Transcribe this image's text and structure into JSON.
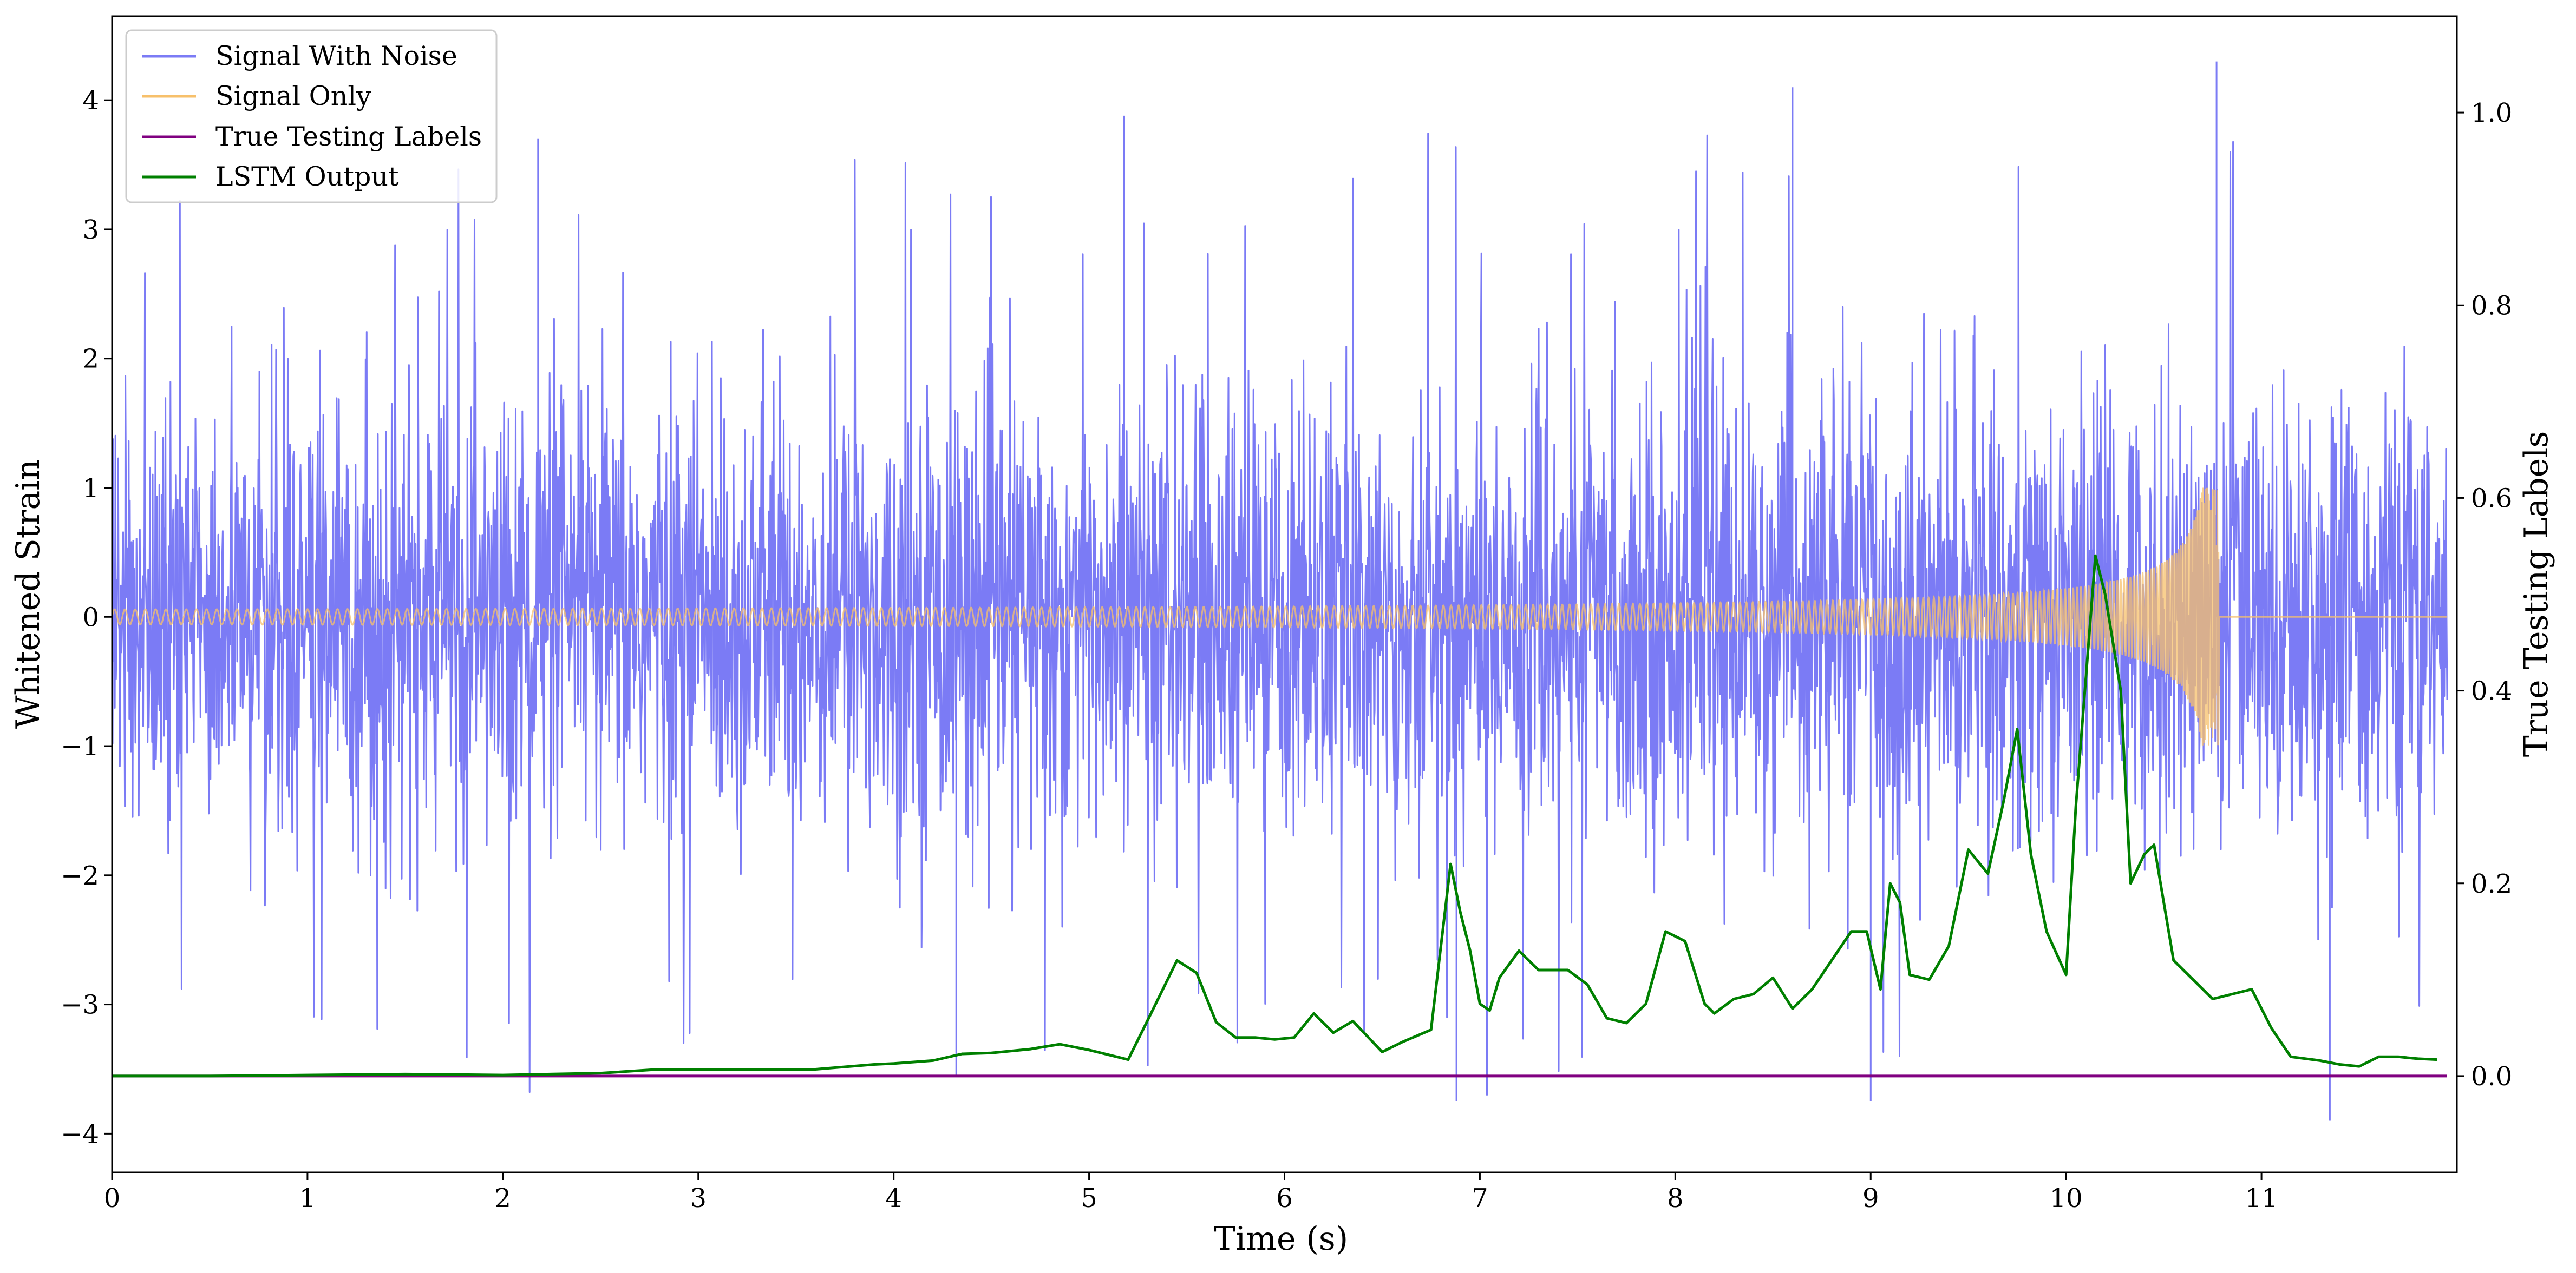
{
  "chart_data": {
    "type": "line",
    "xlabel": "Time (s)",
    "ylabel": "Whitened Strain",
    "ylabel_right": "True Testing Labels",
    "xlim": [
      0,
      12
    ],
    "ylim": [
      -4.3,
      4.65
    ],
    "ylim_right": [
      -0.1,
      1.1
    ],
    "xticks": [
      0,
      1,
      2,
      3,
      4,
      5,
      6,
      7,
      8,
      9,
      10,
      11
    ],
    "yticks": [
      -4,
      -3,
      -2,
      -1,
      0,
      1,
      2,
      3,
      4
    ],
    "yticks_right": [
      0.0,
      0.2,
      0.4,
      0.6,
      0.8,
      1.0
    ],
    "xtick_labels": [
      "0",
      "1",
      "2",
      "3",
      "4",
      "5",
      "6",
      "7",
      "8",
      "9",
      "10",
      "11"
    ],
    "ytick_labels": [
      "−4",
      "−3",
      "−2",
      "−1",
      "0",
      "1",
      "2",
      "3",
      "4"
    ],
    "ytick_labels_right": [
      "0.0",
      "0.2",
      "0.4",
      "0.6",
      "0.8",
      "1.0"
    ],
    "grid": false,
    "legend_position": "top-left",
    "legend": [
      "Signal With Noise",
      "Signal Only",
      "True Testing Labels",
      "LSTM Output"
    ],
    "series": [
      {
        "name": "Signal With Noise",
        "color": "#7b7bf5",
        "axis": "left",
        "description_values": {
          "typical_range": [
            -2.3,
            2.3
          ],
          "max": 4.3,
          "min": -3.9
        }
      },
      {
        "name": "Signal Only",
        "color": "#f7c06b",
        "axis": "left",
        "chirp": {
          "start_x": 0,
          "merger_x": 10.78,
          "peak_amplitude": 1.0,
          "min_amplitude": 0.03
        }
      },
      {
        "name": "True Testing Labels",
        "color": "#800080",
        "axis": "right",
        "x": [
          0,
          11.95
        ],
        "y": [
          0.0,
          0.0
        ]
      },
      {
        "name": "LSTM Output",
        "color": "#008000",
        "axis": "right",
        "x": [
          0,
          0.5,
          1.0,
          1.5,
          2.0,
          2.5,
          2.8,
          3.0,
          3.3,
          3.6,
          3.9,
          4.0,
          4.2,
          4.35,
          4.5,
          4.7,
          4.85,
          5.0,
          5.1,
          5.2,
          5.3,
          5.45,
          5.55,
          5.65,
          5.75,
          5.85,
          5.95,
          6.05,
          6.15,
          6.25,
          6.35,
          6.5,
          6.6,
          6.75,
          6.85,
          6.9,
          6.95,
          7.0,
          7.05,
          7.1,
          7.2,
          7.3,
          7.45,
          7.55,
          7.65,
          7.75,
          7.85,
          7.95,
          8.05,
          8.15,
          8.2,
          8.3,
          8.4,
          8.5,
          8.6,
          8.7,
          8.8,
          8.9,
          8.98,
          9.05,
          9.1,
          9.15,
          9.2,
          9.3,
          9.4,
          9.5,
          9.6,
          9.68,
          9.75,
          9.82,
          9.9,
          10.0,
          10.05,
          10.15,
          10.2,
          10.28,
          10.33,
          10.4,
          10.45,
          10.55,
          10.65,
          10.75,
          10.85,
          10.95,
          11.05,
          11.15,
          11.3,
          11.4,
          11.5,
          11.6,
          11.7,
          11.8,
          11.9
        ],
        "y": [
          0.0,
          0.0,
          0.001,
          0.002,
          0.001,
          0.003,
          0.007,
          0.007,
          0.007,
          0.007,
          0.012,
          0.013,
          0.016,
          0.023,
          0.024,
          0.028,
          0.033,
          0.027,
          0.022,
          0.017,
          0.058,
          0.12,
          0.107,
          0.056,
          0.04,
          0.04,
          0.038,
          0.04,
          0.065,
          0.045,
          0.057,
          0.025,
          0.035,
          0.048,
          0.22,
          0.17,
          0.13,
          0.075,
          0.068,
          0.102,
          0.13,
          0.11,
          0.11,
          0.095,
          0.06,
          0.055,
          0.075,
          0.15,
          0.14,
          0.075,
          0.065,
          0.08,
          0.085,
          0.102,
          0.07,
          0.09,
          0.12,
          0.15,
          0.15,
          0.09,
          0.2,
          0.18,
          0.105,
          0.1,
          0.135,
          0.235,
          0.21,
          0.285,
          0.36,
          0.23,
          0.15,
          0.105,
          0.28,
          0.54,
          0.5,
          0.4,
          0.2,
          0.23,
          0.24,
          0.12,
          0.1,
          0.08,
          0.085,
          0.09,
          0.05,
          0.02,
          0.016,
          0.012,
          0.01,
          0.02,
          0.02,
          0.018,
          0.017
        ]
      }
    ]
  }
}
